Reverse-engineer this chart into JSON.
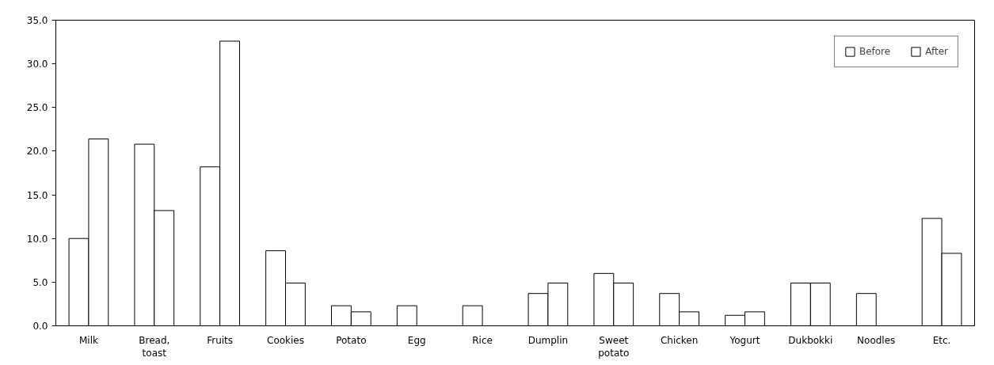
{
  "chart_data": {
    "type": "bar",
    "categories": [
      "Milk",
      "Bread,\ntoast",
      "Fruits",
      "Cookies",
      "Potato",
      "Egg",
      "Rice",
      "Dumplin",
      "Sweet\npotato",
      "Chicken",
      "Yogurt",
      "Dukbokki",
      "Noodles",
      "Etc."
    ],
    "series": [
      {
        "name": "Before",
        "color": "#ffffff",
        "values": [
          10.0,
          20.8,
          18.2,
          8.6,
          2.3,
          2.3,
          2.3,
          3.7,
          6.0,
          3.7,
          1.2,
          4.9,
          3.7,
          12.3
        ]
      },
      {
        "name": "After",
        "color": "#ffffff",
        "values": [
          21.4,
          13.2,
          32.6,
          4.9,
          1.6,
          null,
          null,
          4.9,
          4.9,
          1.6,
          1.6,
          4.9,
          null,
          8.3
        ]
      }
    ],
    "ylim": [
      0,
      35
    ],
    "yticks": [
      {
        "value": 0,
        "label": "0.0"
      },
      {
        "value": 5,
        "label": "5.0"
      },
      {
        "value": 10,
        "label": "10.0"
      },
      {
        "value": 15,
        "label": "15.0"
      },
      {
        "value": 20,
        "label": "20.0"
      },
      {
        "value": 25,
        "label": "25.0"
      },
      {
        "value": 30,
        "label": "30.0"
      },
      {
        "value": 35,
        "label": "35.0"
      }
    ],
    "grid": false,
    "legend": "top right"
  }
}
